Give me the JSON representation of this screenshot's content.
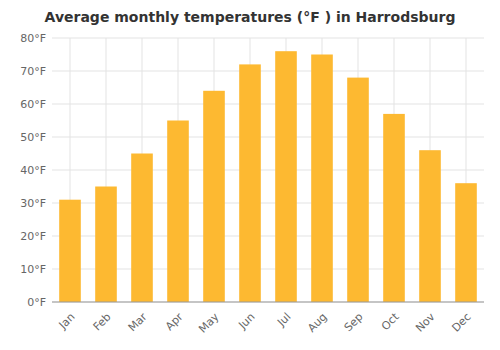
{
  "chart_data": {
    "type": "bar",
    "title": "Average monthly temperatures (°F ) in Harrodsburg",
    "categories": [
      "Jan",
      "Feb",
      "Mar",
      "Apr",
      "May",
      "Jun",
      "Jul",
      "Aug",
      "Sep",
      "Oct",
      "Nov",
      "Dec"
    ],
    "values": [
      31,
      35,
      45,
      55,
      64,
      72,
      76,
      75,
      68,
      57,
      46,
      36
    ],
    "color": "#FDB931",
    "ylim": [
      0,
      80
    ],
    "yticks": [
      {
        "value": 0,
        "label": "0°F"
      },
      {
        "value": 10,
        "label": "10°F"
      },
      {
        "value": 20,
        "label": "20°F"
      },
      {
        "value": 30,
        "label": "30°F"
      },
      {
        "value": 40,
        "label": "40°F"
      },
      {
        "value": 50,
        "label": "50°F"
      },
      {
        "value": 60,
        "label": "60°F"
      },
      {
        "value": 70,
        "label": "70°F"
      },
      {
        "value": 80,
        "label": "80°F"
      }
    ],
    "grid": true
  }
}
